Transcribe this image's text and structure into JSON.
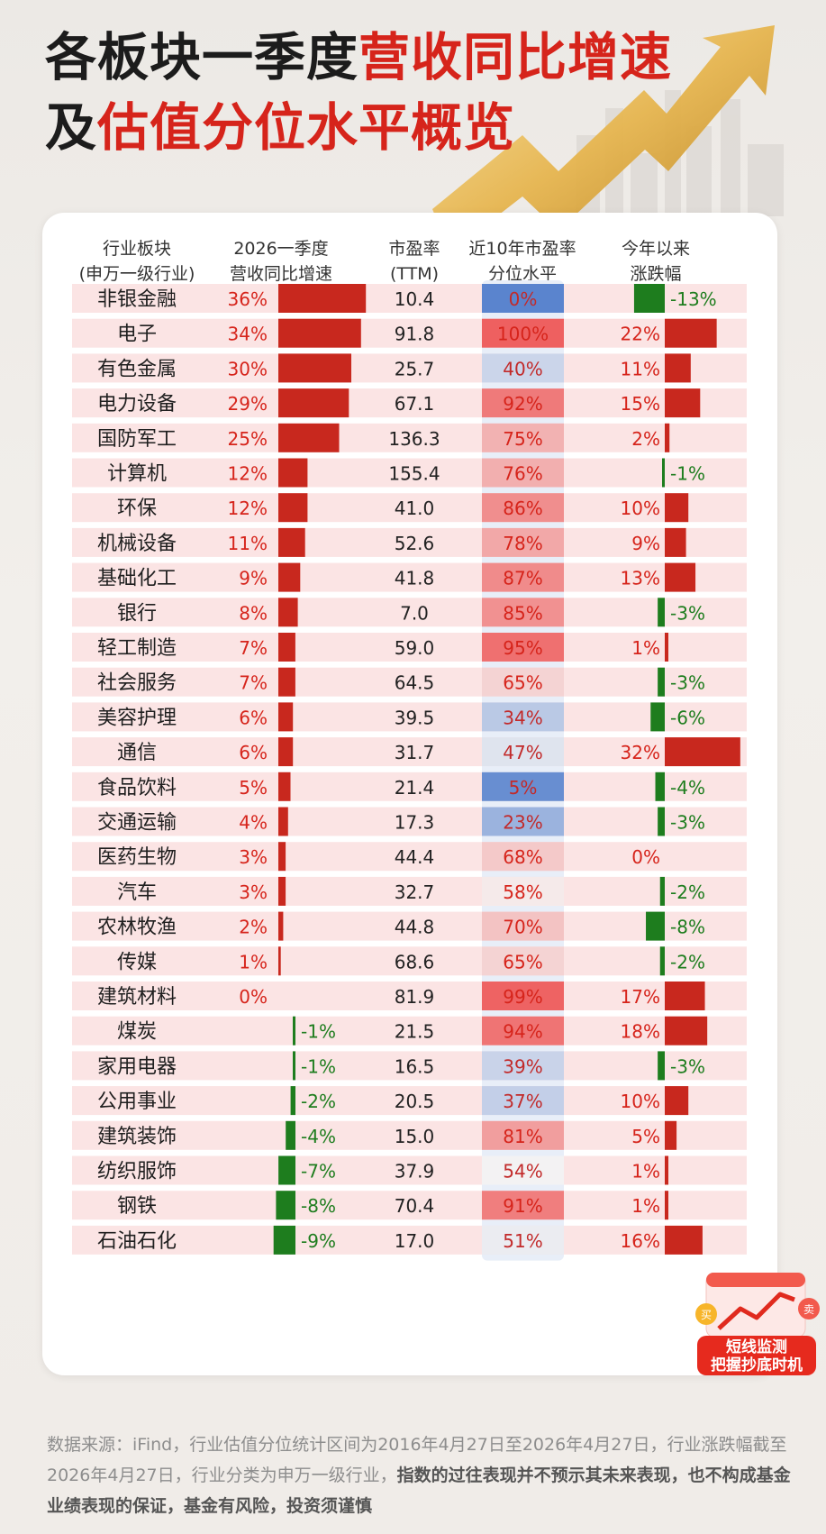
{
  "title": {
    "line1_a": "各板块一季度",
    "line1_b": "营收同比增速",
    "line2_a": "及",
    "line2_b": "估值分位水平概览"
  },
  "colors": {
    "accent_red": "#d6241b",
    "bar_red": "#c8281e",
    "bar_green": "#1e7d1e",
    "row_bg": "#fbe4e4",
    "pct_red": "#e85a5a",
    "pct_blue": "#5d86cf"
  },
  "chart_data": {
    "type": "table",
    "columns": [
      "行业板块\n(申万一级行业)",
      "2026一季度\n营收同比增速",
      "市盈率\n(TTM)",
      "近10年市盈率\n分位水平",
      "今年以来\n涨跌幅"
    ],
    "rows": [
      {
        "industry": "非银金融",
        "growth": 36,
        "pe": "10.4",
        "pct": 0,
        "ytd": -13
      },
      {
        "industry": "电子",
        "growth": 34,
        "pe": "91.8",
        "pct": 100,
        "ytd": 22
      },
      {
        "industry": "有色金属",
        "growth": 30,
        "pe": "25.7",
        "pct": 40,
        "ytd": 11
      },
      {
        "industry": "电力设备",
        "growth": 29,
        "pe": "67.1",
        "pct": 92,
        "ytd": 15
      },
      {
        "industry": "国防军工",
        "growth": 25,
        "pe": "136.3",
        "pct": 75,
        "ytd": 2
      },
      {
        "industry": "计算机",
        "growth": 12,
        "pe": "155.4",
        "pct": 76,
        "ytd": -1
      },
      {
        "industry": "环保",
        "growth": 12,
        "pe": "41.0",
        "pct": 86,
        "ytd": 10
      },
      {
        "industry": "机械设备",
        "growth": 11,
        "pe": "52.6",
        "pct": 78,
        "ytd": 9
      },
      {
        "industry": "基础化工",
        "growth": 9,
        "pe": "41.8",
        "pct": 87,
        "ytd": 13
      },
      {
        "industry": "银行",
        "growth": 8,
        "pe": "7.0",
        "pct": 85,
        "ytd": -3
      },
      {
        "industry": "轻工制造",
        "growth": 7,
        "pe": "59.0",
        "pct": 95,
        "ytd": 1
      },
      {
        "industry": "社会服务",
        "growth": 7,
        "pe": "64.5",
        "pct": 65,
        "ytd": -3
      },
      {
        "industry": "美容护理",
        "growth": 6,
        "pe": "39.5",
        "pct": 34,
        "ytd": -6
      },
      {
        "industry": "通信",
        "growth": 6,
        "pe": "31.7",
        "pct": 47,
        "ytd": 32
      },
      {
        "industry": "食品饮料",
        "growth": 5,
        "pe": "21.4",
        "pct": 5,
        "ytd": -4
      },
      {
        "industry": "交通运输",
        "growth": 4,
        "pe": "17.3",
        "pct": 23,
        "ytd": -3
      },
      {
        "industry": "医药生物",
        "growth": 3,
        "pe": "44.4",
        "pct": 68,
        "ytd": 0
      },
      {
        "industry": "汽车",
        "growth": 3,
        "pe": "32.7",
        "pct": 58,
        "ytd": -2
      },
      {
        "industry": "农林牧渔",
        "growth": 2,
        "pe": "44.8",
        "pct": 70,
        "ytd": -8
      },
      {
        "industry": "传媒",
        "growth": 1,
        "pe": "68.6",
        "pct": 65,
        "ytd": -2
      },
      {
        "industry": "建筑材料",
        "growth": 0,
        "pe": "81.9",
        "pct": 99,
        "ytd": 17
      },
      {
        "industry": "煤炭",
        "growth": -1,
        "pe": "21.5",
        "pct": 94,
        "ytd": 18
      },
      {
        "industry": "家用电器",
        "growth": -1,
        "pe": "16.5",
        "pct": 39,
        "ytd": -3
      },
      {
        "industry": "公用事业",
        "growth": -2,
        "pe": "20.5",
        "pct": 37,
        "ytd": 10
      },
      {
        "industry": "建筑装饰",
        "growth": -4,
        "pe": "15.0",
        "pct": 81,
        "ytd": 5
      },
      {
        "industry": "纺织服饰",
        "growth": -7,
        "pe": "37.9",
        "pct": 54,
        "ytd": 1
      },
      {
        "industry": "钢铁",
        "growth": -8,
        "pe": "70.4",
        "pct": 91,
        "ytd": 1
      },
      {
        "industry": "石油石化",
        "growth": -9,
        "pe": "17.0",
        "pct": 51,
        "ytd": 16
      }
    ]
  },
  "footnote": {
    "text_a": "数据来源：iFind，行业估值分位统计区间为2016年4月27日至2026年4月27日，行业涨跌幅截至2026年4月27日，行业分类为申万一级行业，",
    "text_b": "指数的过往表现并不预示其未来表现，也不构成基金业绩表现的保证，基金有风险，投资须谨慎"
  },
  "badge": {
    "line1": "短线监测",
    "line2": "把握抄底时机",
    "buy": "买",
    "sell": "卖"
  }
}
